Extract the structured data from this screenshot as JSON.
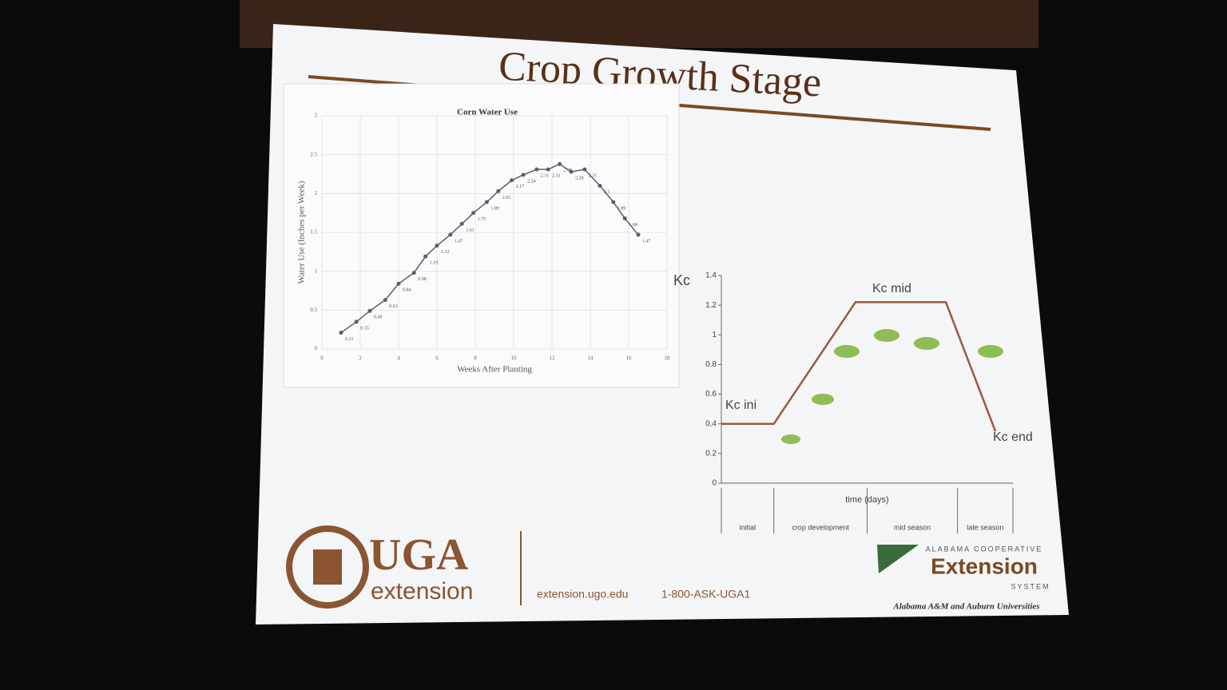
{
  "slide": {
    "title": "Crop Growth Stage",
    "footer": {
      "uga": "UGA",
      "extension": "extension",
      "url": "extension.ugo.edu",
      "phone": "1-800-ASK-UGA1",
      "alabama_top": "ALABAMA COOPERATIVE",
      "alabama_main": "Extension",
      "alabama_system": "SYSTEM",
      "alabama_unis": "Alabama A&M and Auburn Universities"
    }
  },
  "chart_data": [
    {
      "type": "line",
      "title": "Corn Water Use",
      "x_label": "Weeks After Planting",
      "y_label": "Water Use (Inches per Week)",
      "x": [
        1.0,
        1.8,
        2.5,
        3.3,
        4.0,
        4.8,
        5.4,
        6.0,
        6.7,
        7.3,
        7.9,
        8.6,
        9.2,
        9.9,
        10.5,
        11.2,
        11.8,
        12.4,
        13.0,
        13.7,
        14.5,
        15.2,
        15.8,
        16.5
      ],
      "series": [
        {
          "name": "Corn Water Use",
          "color": "#55606e",
          "values": [
            0.21,
            0.35,
            0.49,
            0.63,
            0.84,
            0.98,
            1.19,
            1.33,
            1.47,
            1.61,
            1.75,
            1.89,
            2.03,
            2.17,
            2.24,
            2.31,
            2.31,
            2.38,
            2.28,
            2.31,
            2.1,
            1.89,
            1.68,
            1.47
          ]
        }
      ],
      "xlim": [
        0,
        18
      ],
      "xticks": [
        0,
        2,
        4,
        6,
        8,
        10,
        12,
        14,
        16,
        18
      ],
      "ylim": [
        0,
        3
      ],
      "yticks": [
        0,
        0.5,
        1,
        1.5,
        2,
        2.5,
        3
      ],
      "grid": true
    },
    {
      "type": "kc",
      "y_label": "Kc",
      "x_label": "time (days)",
      "x": [
        0,
        18,
        46,
        77,
        94
      ],
      "series": [
        {
          "name": "Kc",
          "color": "#9a5a3c",
          "values": [
            0.4,
            0.4,
            1.22,
            1.22,
            0.35
          ]
        }
      ],
      "xlim": [
        0,
        100
      ],
      "ylim": [
        0,
        1.4
      ],
      "yticks": [
        0,
        0.2,
        0.4,
        0.6,
        0.8,
        1,
        1.2,
        1.4
      ],
      "annotations": [
        "Kc ini",
        "Kc mid",
        "Kc end"
      ],
      "stages": [
        "initial",
        "crop development",
        "mid season",
        "late season"
      ],
      "stage_bounds": [
        0,
        18,
        50,
        81,
        100
      ]
    }
  ]
}
